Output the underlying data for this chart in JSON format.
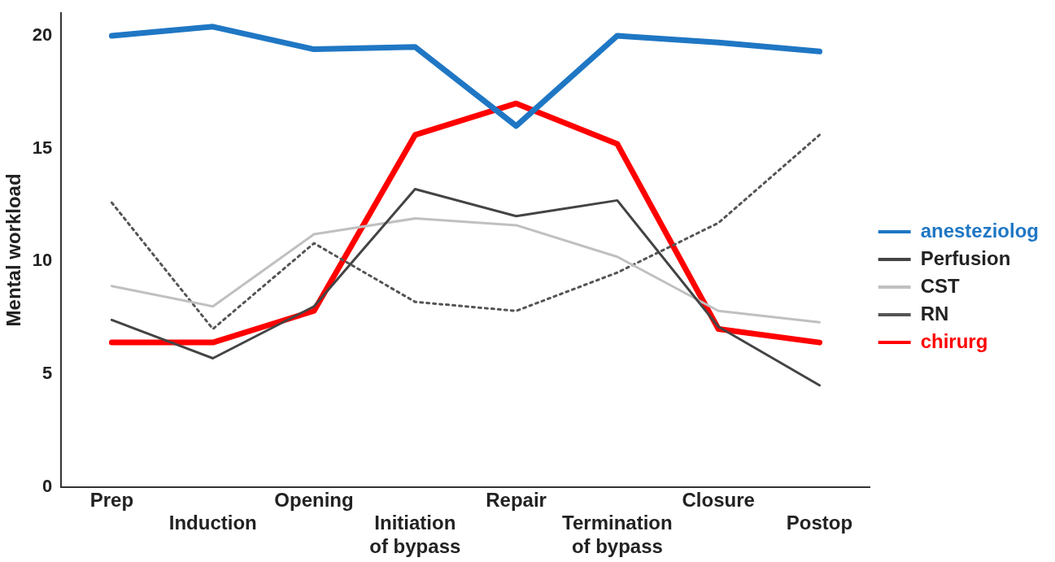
{
  "chart_data": {
    "type": "line",
    "ylabel": "Mental workload",
    "categories": [
      "Prep",
      "Induction",
      "Opening",
      "Initiation of bypass",
      "Repair",
      "Termination of bypass",
      "Closure",
      "Postop"
    ],
    "ylim": [
      0,
      21
    ],
    "yticks": [
      0,
      5,
      10,
      15,
      20
    ],
    "grid": false,
    "legend": "right",
    "marker": "none",
    "series": [
      {
        "name": "anesteziolog",
        "color": "#1f77c4",
        "line_style": "solid",
        "values": [
          20.0,
          20.4,
          19.4,
          19.5,
          16.0,
          20.0,
          19.7,
          19.3
        ]
      },
      {
        "name": "Perfusion",
        "color": "#444444",
        "line_style": "solid",
        "values": [
          7.4,
          5.7,
          8.0,
          13.2,
          12.0,
          12.7,
          7.1,
          4.5
        ]
      },
      {
        "name": "CST",
        "color": "#c0c0c0",
        "line_style": "solid",
        "values": [
          8.9,
          8.0,
          11.2,
          11.9,
          11.6,
          10.2,
          7.8,
          7.3
        ]
      },
      {
        "name": "RN",
        "color": "#555555",
        "line_style": "dotted",
        "values": [
          12.6,
          7.0,
          10.8,
          8.2,
          7.8,
          9.5,
          11.7,
          15.6
        ]
      },
      {
        "name": "chirurg",
        "color": "#ff0000",
        "line_style": "solid",
        "values": [
          6.4,
          6.4,
          7.8,
          15.6,
          17.0,
          15.2,
          7.0,
          6.4
        ]
      }
    ]
  }
}
